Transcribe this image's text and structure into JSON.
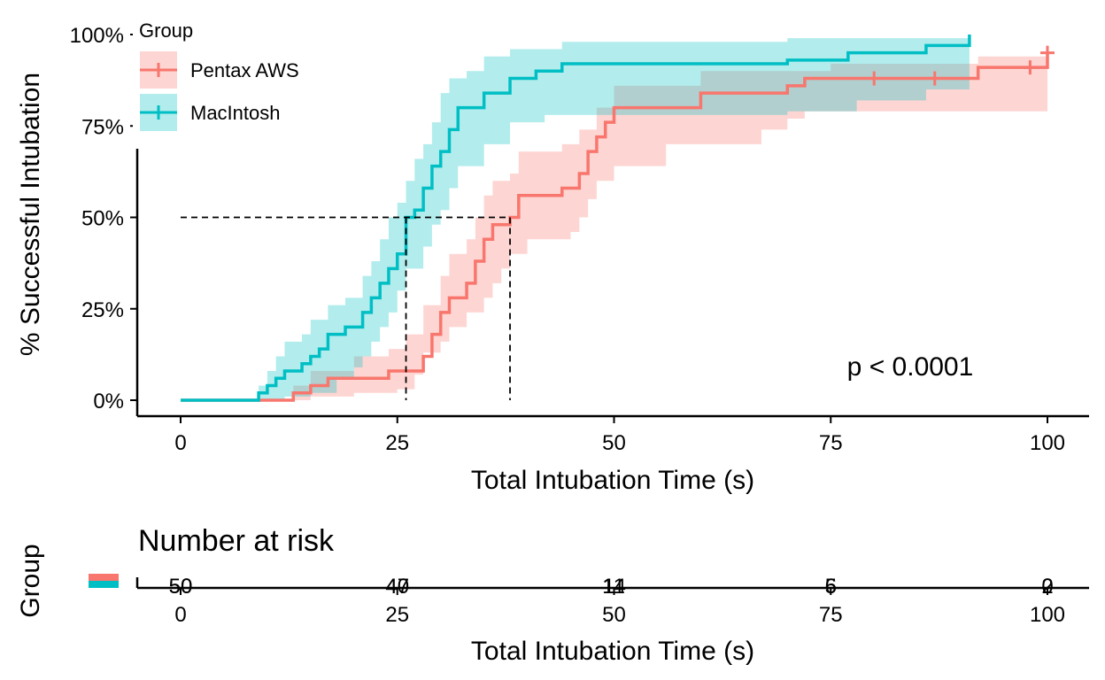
{
  "chart_data": {
    "type": "line",
    "subtype": "kaplan-meier cumulative incidence (step)",
    "xlabel": "Total Intubation Time (s)",
    "ylabel": "% Successful Intubation",
    "xlim": [
      0,
      100
    ],
    "ylim": [
      0,
      100
    ],
    "x_ticks": [
      0,
      25,
      50,
      75,
      100
    ],
    "y_ticks": [
      "0%",
      "25%",
      "50%",
      "75%",
      "100%"
    ],
    "grid": false,
    "legend": {
      "title": "Group",
      "position": "top-left"
    },
    "annotation": "p < 0.0001",
    "median_lines": {
      "y": 50,
      "x": [
        26,
        38
      ]
    },
    "series": [
      {
        "name": "Pentax AWS",
        "color": "#F8766D",
        "band_color": "#F8766D",
        "points": [
          [
            0,
            0
          ],
          [
            12,
            0
          ],
          [
            13,
            2
          ],
          [
            15,
            4
          ],
          [
            17,
            6
          ],
          [
            24,
            8
          ],
          [
            28,
            12
          ],
          [
            29,
            18
          ],
          [
            30,
            24
          ],
          [
            31,
            28
          ],
          [
            33,
            32
          ],
          [
            34,
            38
          ],
          [
            35,
            44
          ],
          [
            36,
            48
          ],
          [
            38,
            50
          ],
          [
            39,
            56
          ],
          [
            44,
            58
          ],
          [
            46,
            62
          ],
          [
            47,
            68
          ],
          [
            48,
            72
          ],
          [
            49,
            76
          ],
          [
            50,
            80
          ],
          [
            60,
            84
          ],
          [
            70,
            86
          ],
          [
            72,
            88
          ],
          [
            92,
            91
          ],
          [
            100,
            95
          ]
        ],
        "lower": [
          [
            0,
            0
          ],
          [
            12,
            0
          ],
          [
            15,
            1
          ],
          [
            20,
            2
          ],
          [
            25,
            3
          ],
          [
            27,
            7
          ],
          [
            28,
            13
          ],
          [
            30,
            16
          ],
          [
            31,
            20
          ],
          [
            33,
            24
          ],
          [
            35,
            28
          ],
          [
            36,
            32
          ],
          [
            37,
            36
          ],
          [
            38,
            40
          ],
          [
            40,
            44
          ],
          [
            45,
            46
          ],
          [
            46,
            50
          ],
          [
            47,
            55
          ],
          [
            48,
            60
          ],
          [
            50,
            64
          ],
          [
            56,
            70
          ],
          [
            67,
            74
          ],
          [
            70,
            77
          ],
          [
            72,
            79
          ],
          [
            100,
            82
          ]
        ],
        "upper": [
          [
            0,
            0
          ],
          [
            12,
            0
          ],
          [
            13,
            4
          ],
          [
            15,
            8
          ],
          [
            20,
            12
          ],
          [
            24,
            14
          ],
          [
            26,
            18
          ],
          [
            28,
            26
          ],
          [
            30,
            34
          ],
          [
            31,
            40
          ],
          [
            33,
            44
          ],
          [
            34,
            50
          ],
          [
            35,
            56
          ],
          [
            36,
            60
          ],
          [
            38,
            62
          ],
          [
            39,
            68
          ],
          [
            44,
            70
          ],
          [
            46,
            74
          ],
          [
            48,
            80
          ],
          [
            50,
            86
          ],
          [
            60,
            90
          ],
          [
            75,
            92
          ],
          [
            92,
            94
          ],
          [
            100,
            97
          ]
        ],
        "censored": [
          [
            80,
            88
          ],
          [
            87,
            88
          ],
          [
            98,
            91
          ],
          [
            100,
            95
          ]
        ]
      },
      {
        "name": "MacIntosh",
        "color": "#00BFC4",
        "band_color": "#00BFC4",
        "points": [
          [
            0,
            0
          ],
          [
            9,
            2
          ],
          [
            10,
            4
          ],
          [
            11,
            6
          ],
          [
            12,
            8
          ],
          [
            14,
            10
          ],
          [
            15,
            12
          ],
          [
            16,
            14
          ],
          [
            17,
            18
          ],
          [
            19,
            20
          ],
          [
            21,
            24
          ],
          [
            22,
            28
          ],
          [
            23,
            32
          ],
          [
            24,
            36
          ],
          [
            25,
            40
          ],
          [
            26,
            50
          ],
          [
            27,
            52
          ],
          [
            28,
            58
          ],
          [
            29,
            64
          ],
          [
            30,
            68
          ],
          [
            31,
            74
          ],
          [
            32,
            80
          ],
          [
            35,
            84
          ],
          [
            38,
            88
          ],
          [
            41,
            90
          ],
          [
            44,
            92
          ],
          [
            70,
            93
          ],
          [
            77,
            95
          ],
          [
            86,
            97
          ],
          [
            91,
            100
          ]
        ],
        "lower": [
          [
            0,
            0
          ],
          [
            9,
            0
          ],
          [
            12,
            1
          ],
          [
            15,
            2
          ],
          [
            18,
            6
          ],
          [
            20,
            9
          ],
          [
            21,
            12
          ],
          [
            22,
            16
          ],
          [
            23,
            20
          ],
          [
            24,
            24
          ],
          [
            25,
            30
          ],
          [
            26,
            36
          ],
          [
            28,
            42
          ],
          [
            29,
            48
          ],
          [
            30,
            52
          ],
          [
            31,
            58
          ],
          [
            32,
            64
          ],
          [
            35,
            70
          ],
          [
            38,
            76
          ],
          [
            42,
            78
          ],
          [
            70,
            79
          ],
          [
            78,
            82
          ],
          [
            86,
            85
          ],
          [
            91,
            88
          ]
        ],
        "upper": [
          [
            0,
            0
          ],
          [
            9,
            4
          ],
          [
            10,
            8
          ],
          [
            11,
            12
          ],
          [
            12,
            16
          ],
          [
            14,
            18
          ],
          [
            15,
            22
          ],
          [
            17,
            26
          ],
          [
            19,
            28
          ],
          [
            21,
            34
          ],
          [
            22,
            38
          ],
          [
            23,
            44
          ],
          [
            24,
            50
          ],
          [
            25,
            54
          ],
          [
            26,
            60
          ],
          [
            27,
            66
          ],
          [
            28,
            70
          ],
          [
            29,
            76
          ],
          [
            30,
            84
          ],
          [
            31,
            88
          ],
          [
            33,
            90
          ],
          [
            35,
            94
          ],
          [
            38,
            96
          ],
          [
            44,
            98
          ],
          [
            70,
            99
          ],
          [
            91,
            100
          ]
        ],
        "censored": []
      }
    ],
    "risk_table": {
      "title": "Number at risk",
      "ylabel": "Group",
      "xlabel": "Total Intubation Time (s)",
      "rows": [
        {
          "name": "Pentax AWS",
          "color": "#F8766D",
          "counts": [
            "50",
            "47",
            "14",
            "5",
            "2"
          ]
        },
        {
          "name": "MacIntosh",
          "color": "#00BFC4",
          "counts": [
            "50",
            "40",
            "11",
            "6",
            "0"
          ]
        }
      ]
    }
  }
}
